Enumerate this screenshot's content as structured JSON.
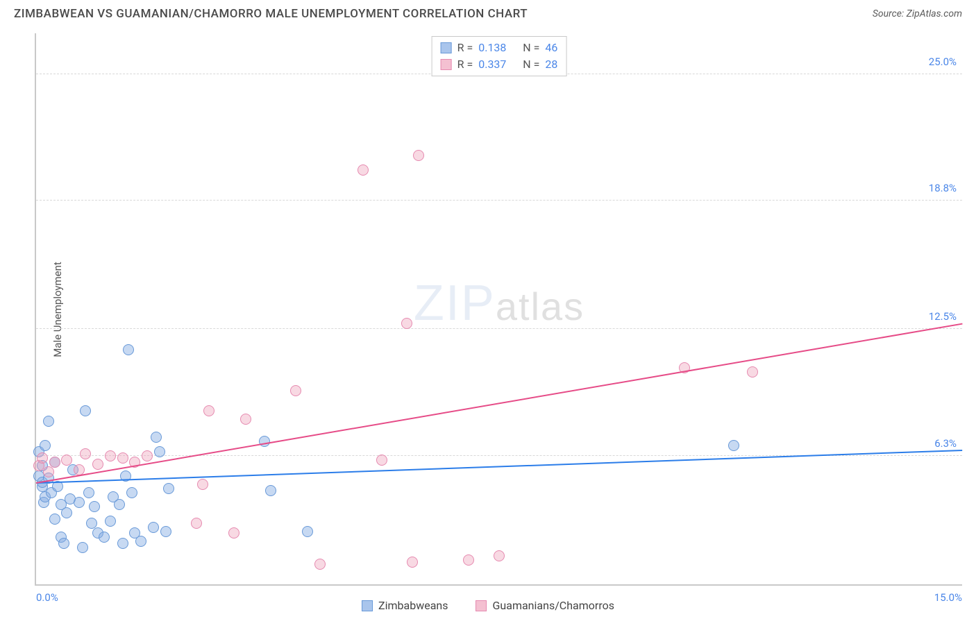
{
  "header": {
    "title": "ZIMBABWEAN VS GUAMANIAN/CHAMORRO MALE UNEMPLOYMENT CORRELATION CHART",
    "source_prefix": "Source: ",
    "source_name": "ZipAtlas.com"
  },
  "chart": {
    "type": "scatter",
    "y_axis_label": "Male Unemployment",
    "xlim": [
      0,
      15
    ],
    "ylim": [
      0,
      27
    ],
    "x_ticks": [
      {
        "value": 0,
        "label": "0.0%"
      },
      {
        "value": 15,
        "label": "15.0%"
      }
    ],
    "y_ticks": [
      {
        "value": 6.3,
        "label": "6.3%"
      },
      {
        "value": 12.5,
        "label": "12.5%"
      },
      {
        "value": 18.8,
        "label": "18.8%"
      },
      {
        "value": 25.0,
        "label": "25.0%"
      }
    ],
    "background_color": "#ffffff",
    "grid_color": "#d8d8d8",
    "axis_color": "#c9c9c9",
    "tick_label_color": "#4a86e8",
    "marker_radius": 8,
    "marker_border_width": 1.5,
    "series": [
      {
        "name": "Zimbabweans",
        "fill_color": "rgba(130,170,226,0.45)",
        "stroke_color": "#6899d8",
        "swatch_fill": "#a9c5ec",
        "swatch_border": "#6899d8",
        "trend_color": "#2b7de9",
        "trend_width": 2,
        "R": "0.138",
        "N": "46",
        "trend": {
          "x1": 0,
          "y1": 5.0,
          "x2": 15,
          "y2": 6.6
        },
        "points": [
          [
            0.05,
            5.3
          ],
          [
            0.05,
            6.5
          ],
          [
            0.1,
            4.8
          ],
          [
            0.1,
            5.8
          ],
          [
            0.1,
            5.0
          ],
          [
            0.12,
            4.0
          ],
          [
            0.15,
            6.8
          ],
          [
            0.15,
            4.3
          ],
          [
            0.2,
            8.0
          ],
          [
            0.2,
            5.2
          ],
          [
            0.25,
            4.5
          ],
          [
            0.3,
            3.2
          ],
          [
            0.3,
            6.0
          ],
          [
            0.35,
            4.8
          ],
          [
            0.4,
            2.3
          ],
          [
            0.4,
            3.9
          ],
          [
            0.45,
            2.0
          ],
          [
            0.5,
            3.5
          ],
          [
            0.55,
            4.2
          ],
          [
            0.6,
            5.6
          ],
          [
            0.7,
            4.0
          ],
          [
            0.75,
            1.8
          ],
          [
            0.8,
            8.5
          ],
          [
            0.85,
            4.5
          ],
          [
            0.9,
            3.0
          ],
          [
            0.95,
            3.8
          ],
          [
            1.0,
            2.5
          ],
          [
            1.1,
            2.3
          ],
          [
            1.2,
            3.1
          ],
          [
            1.25,
            4.3
          ],
          [
            1.35,
            3.9
          ],
          [
            1.4,
            2.0
          ],
          [
            1.45,
            5.3
          ],
          [
            1.5,
            11.5
          ],
          [
            1.55,
            4.5
          ],
          [
            1.6,
            2.5
          ],
          [
            1.7,
            2.1
          ],
          [
            1.9,
            2.8
          ],
          [
            1.95,
            7.2
          ],
          [
            2.0,
            6.5
          ],
          [
            2.1,
            2.6
          ],
          [
            2.15,
            4.7
          ],
          [
            3.7,
            7.0
          ],
          [
            3.8,
            4.6
          ],
          [
            4.4,
            2.6
          ],
          [
            11.3,
            6.8
          ]
        ]
      },
      {
        "name": "Guamanians/Chamorros",
        "fill_color": "rgba(238,160,185,0.40)",
        "stroke_color": "#e68ab0",
        "swatch_fill": "#f4c0d1",
        "swatch_border": "#e68ab0",
        "trend_color": "#e64b87",
        "trend_width": 2,
        "R": "0.337",
        "N": "28",
        "trend": {
          "x1": 0,
          "y1": 5.0,
          "x2": 15,
          "y2": 12.8
        },
        "points": [
          [
            0.05,
            5.8
          ],
          [
            0.1,
            6.2
          ],
          [
            0.2,
            5.5
          ],
          [
            0.3,
            6.0
          ],
          [
            0.5,
            6.1
          ],
          [
            0.7,
            5.6
          ],
          [
            0.8,
            6.4
          ],
          [
            1.0,
            5.9
          ],
          [
            1.2,
            6.3
          ],
          [
            1.4,
            6.2
          ],
          [
            1.6,
            6.0
          ],
          [
            1.8,
            6.3
          ],
          [
            2.6,
            3.0
          ],
          [
            2.7,
            4.9
          ],
          [
            2.8,
            8.5
          ],
          [
            3.2,
            2.5
          ],
          [
            3.4,
            8.1
          ],
          [
            4.2,
            9.5
          ],
          [
            4.6,
            1.0
          ],
          [
            5.3,
            20.3
          ],
          [
            5.6,
            6.1
          ],
          [
            6.0,
            12.8
          ],
          [
            6.1,
            1.1
          ],
          [
            6.2,
            21.0
          ],
          [
            7.0,
            1.2
          ],
          [
            7.5,
            1.4
          ],
          [
            10.5,
            10.6
          ],
          [
            11.6,
            10.4
          ]
        ]
      }
    ],
    "watermark": {
      "part1": "ZIP",
      "part2": "atlas"
    }
  },
  "stat_box": {
    "r_label": "R",
    "eq": "=",
    "n_label": "N"
  }
}
